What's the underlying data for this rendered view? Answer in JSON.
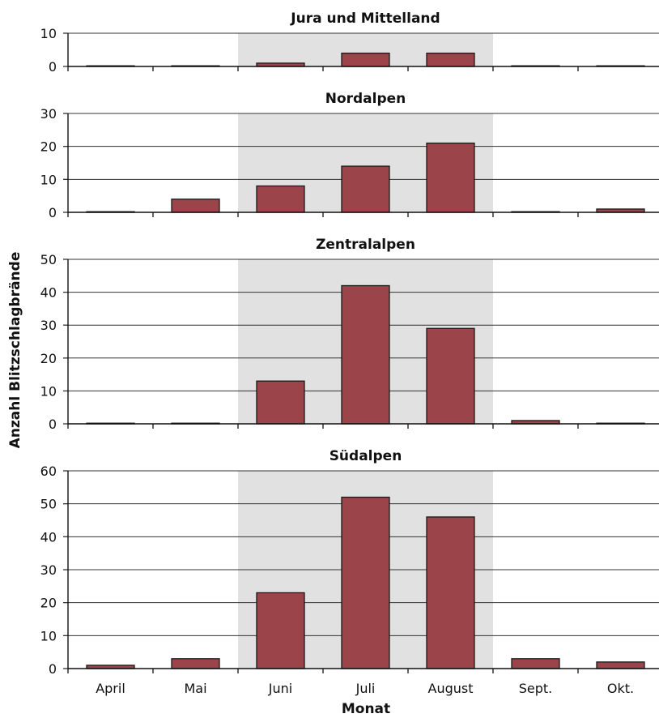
{
  "chart_data": {
    "type": "bar",
    "xlabel": "Monat",
    "ylabel": "Anzahl Blitzschlagbrände",
    "categories": [
      "April",
      "Mai",
      "Juni",
      "Juli",
      "August",
      "Sept.",
      "Okt."
    ],
    "colors": {
      "bar": "#9b4449",
      "bar_stroke": "#1a1a1a",
      "shade": "#e0e1e0",
      "grid": "#333333"
    },
    "shaded_categories": [
      "Juni",
      "Juli",
      "August"
    ],
    "grid": true,
    "panels": [
      {
        "title": "Jura und Mittelland",
        "ylim": [
          0,
          10
        ],
        "yticks": [
          0,
          10
        ],
        "values": [
          0,
          0,
          1,
          4,
          4,
          0,
          0
        ]
      },
      {
        "title": "Nordalpen",
        "ylim": [
          0,
          30
        ],
        "yticks": [
          0,
          10,
          20,
          30
        ],
        "values": [
          0,
          4,
          8,
          14,
          21,
          0,
          1
        ]
      },
      {
        "title": "Zentralalpen",
        "ylim": [
          0,
          50
        ],
        "yticks": [
          0,
          10,
          20,
          30,
          40,
          50
        ],
        "values": [
          0,
          0,
          13,
          42,
          29,
          1,
          0
        ]
      },
      {
        "title": "Südalpen",
        "ylim": [
          0,
          60
        ],
        "yticks": [
          0,
          10,
          20,
          30,
          40,
          50,
          60
        ],
        "values": [
          1,
          3,
          23,
          52,
          46,
          3,
          2
        ]
      }
    ]
  }
}
